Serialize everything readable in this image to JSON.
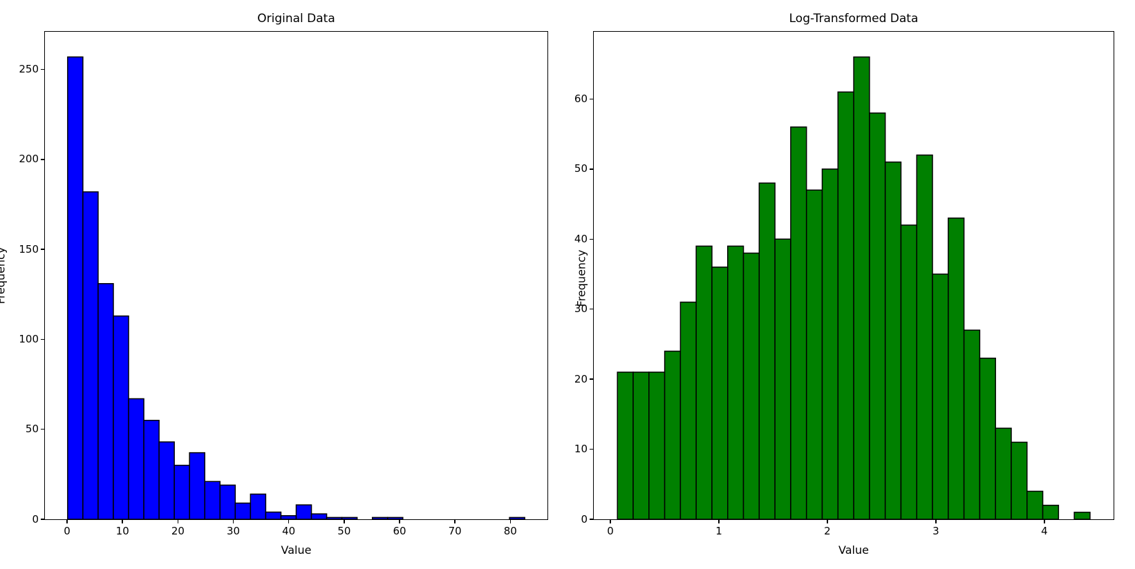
{
  "figure": {
    "background": "#ffffff",
    "text_color": "#000000",
    "spine_color": "#000000"
  },
  "chart_data": [
    {
      "type": "bar",
      "subtype": "histogram",
      "title": "Original Data",
      "xlabel": "Value",
      "ylabel": "Frequency",
      "bar_color": "#0000ff",
      "edge_color": "#000000",
      "bin_start": 0.1,
      "bin_width": 2.75,
      "values": [
        257,
        182,
        131,
        113,
        67,
        55,
        43,
        30,
        37,
        21,
        19,
        9,
        14,
        4,
        2,
        8,
        3,
        1,
        1,
        0,
        1,
        1,
        0,
        0,
        0,
        0,
        0,
        0,
        0,
        1
      ],
      "total_count": 1000,
      "xlim": [
        -4.0,
        86.7
      ],
      "ylim": [
        0,
        271
      ],
      "xticks": [
        0,
        10,
        20,
        30,
        40,
        50,
        60,
        70,
        80
      ],
      "yticks": [
        0,
        50,
        100,
        150,
        200,
        250
      ],
      "grid": false,
      "legend": null
    },
    {
      "type": "bar",
      "subtype": "histogram",
      "title": "Log-Transformed Data",
      "xlabel": "Value",
      "ylabel": "Frequency",
      "bar_color": "#008000",
      "edge_color": "#000000",
      "bin_start": 0.065,
      "bin_width": 0.1452,
      "values": [
        21,
        21,
        21,
        24,
        31,
        39,
        36,
        39,
        38,
        48,
        40,
        56,
        47,
        50,
        61,
        66,
        58,
        51,
        42,
        52,
        35,
        43,
        27,
        23,
        13,
        11,
        4,
        2,
        0,
        1
      ],
      "total_count": 1000,
      "xlim": [
        -0.153,
        4.638
      ],
      "ylim": [
        0,
        69.6
      ],
      "xticks": [
        0,
        1,
        2,
        3,
        4
      ],
      "yticks": [
        0,
        10,
        20,
        30,
        40,
        50,
        60
      ],
      "grid": false,
      "legend": null
    }
  ]
}
